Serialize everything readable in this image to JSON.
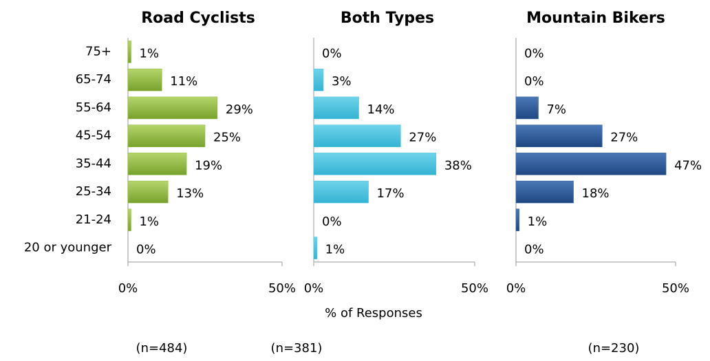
{
  "chart_data": [
    {
      "type": "barh",
      "title": "Road Cyclists",
      "color": "#8db63c",
      "categories": [
        "75+",
        "65-74",
        "55-64",
        "45-54",
        "35-44",
        "25-34",
        "21-24",
        "20 or younger"
      ],
      "values": [
        1,
        11,
        29,
        25,
        19,
        13,
        1,
        0
      ],
      "value_labels": [
        "1%",
        "11%",
        "29%",
        "25%",
        "19%",
        "13%",
        "1%",
        "0%"
      ],
      "xlim": [
        0,
        50
      ],
      "xticks": [
        {
          "value": 0,
          "label": "0%"
        },
        {
          "value": 50,
          "label": "50%"
        }
      ],
      "note": "(n=484)"
    },
    {
      "type": "barh",
      "title": "Both Types",
      "color": "#4bc4e0",
      "values": [
        0,
        3,
        14,
        27,
        38,
        17,
        0,
        1
      ],
      "value_labels": [
        "0%",
        "3%",
        "14%",
        "27%",
        "38%",
        "17%",
        "0%",
        "1%"
      ],
      "xlim": [
        0,
        50
      ],
      "xticks": [
        {
          "value": 0,
          "label": "0%"
        },
        {
          "value": 50,
          "label": "50%"
        }
      ],
      "xlabel": "% of Responses",
      "note": "(n=381)"
    },
    {
      "type": "barh",
      "title": "Mountain Bikers",
      "color": "#2d5a98",
      "values": [
        0,
        0,
        7,
        27,
        47,
        18,
        1,
        0
      ],
      "value_labels": [
        "0%",
        "0%",
        "7%",
        "27%",
        "47%",
        "18%",
        "1%",
        "0%"
      ],
      "xlim": [
        0,
        50
      ],
      "xticks": [
        {
          "value": 0,
          "label": "0%"
        },
        {
          "value": 50,
          "label": "50%"
        }
      ],
      "note": "(n=230)"
    }
  ]
}
